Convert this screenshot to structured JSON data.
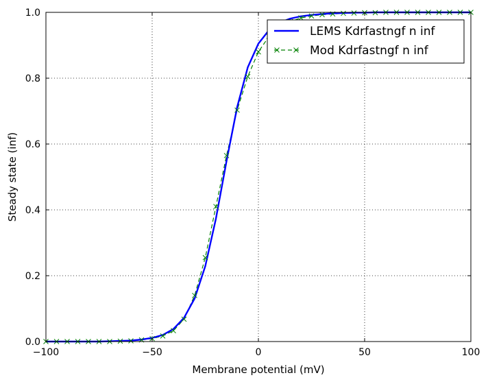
{
  "chart_data": {
    "type": "line",
    "title": "",
    "xlabel": "Membrane potential (mV)",
    "ylabel": "Steady state (inf)",
    "xlim": [
      -100,
      100
    ],
    "ylim": [
      0.0,
      1.0
    ],
    "xticks": [
      -100,
      -50,
      0,
      50,
      100
    ],
    "xtick_labels": [
      "−100",
      "−50",
      "0",
      "50",
      "100"
    ],
    "yticks": [
      0.0,
      0.2,
      0.4,
      0.6,
      0.8,
      1.0
    ],
    "ytick_labels": [
      "0.0",
      "0.2",
      "0.4",
      "0.6",
      "0.8",
      "1.0"
    ],
    "grid": true,
    "legend_position": "top-right",
    "series": [
      {
        "name": "LEMS Kdrfastngf n inf",
        "color": "#0000ff",
        "style": "solid",
        "marker": "none",
        "x": [
          -100,
          -95,
          -90,
          -85,
          -80,
          -75,
          -70,
          -65,
          -60,
          -55,
          -50,
          -45,
          -40,
          -35,
          -30,
          -25,
          -20,
          -15,
          -10,
          -5,
          0,
          5,
          10,
          15,
          20,
          25,
          30,
          35,
          40,
          45,
          50,
          55,
          60,
          65,
          70,
          75,
          80,
          85,
          90,
          95,
          100
        ],
        "y": [
          0.0,
          0.0,
          0.0,
          0.0,
          0.0,
          0.0,
          0.001,
          0.002,
          0.003,
          0.006,
          0.011,
          0.02,
          0.038,
          0.072,
          0.131,
          0.229,
          0.373,
          0.548,
          0.712,
          0.833,
          0.905,
          0.946,
          0.969,
          0.981,
          0.988,
          0.992,
          0.995,
          0.997,
          0.998,
          0.999,
          0.999,
          1.0,
          1.0,
          1.0,
          1.0,
          1.0,
          1.0,
          1.0,
          1.0,
          1.0,
          1.0
        ]
      },
      {
        "name": "Mod Kdrfastngf n inf",
        "color": "#008000",
        "style": "dashed",
        "marker": "x",
        "x": [
          -100,
          -95,
          -90,
          -85,
          -80,
          -75,
          -70,
          -65,
          -60,
          -55,
          -50,
          -45,
          -40,
          -35,
          -30,
          -25,
          -20,
          -15,
          -10,
          -5,
          0,
          5,
          10,
          15,
          20,
          25,
          30,
          35,
          40,
          45,
          50,
          55,
          60,
          65,
          70,
          75,
          80,
          85,
          90,
          95,
          100
        ],
        "y": [
          0.0,
          0.0,
          0.0,
          0.0,
          0.0,
          0.0,
          0.0,
          0.001,
          0.002,
          0.005,
          0.009,
          0.017,
          0.033,
          0.068,
          0.14,
          0.255,
          0.41,
          0.565,
          0.703,
          0.805,
          0.88,
          0.927,
          0.955,
          0.972,
          0.983,
          0.989,
          0.993,
          0.995,
          0.997,
          0.998,
          0.999,
          0.999,
          1.0,
          1.0,
          1.0,
          1.0,
          1.0,
          1.0,
          1.0,
          1.0,
          1.0
        ]
      }
    ]
  }
}
